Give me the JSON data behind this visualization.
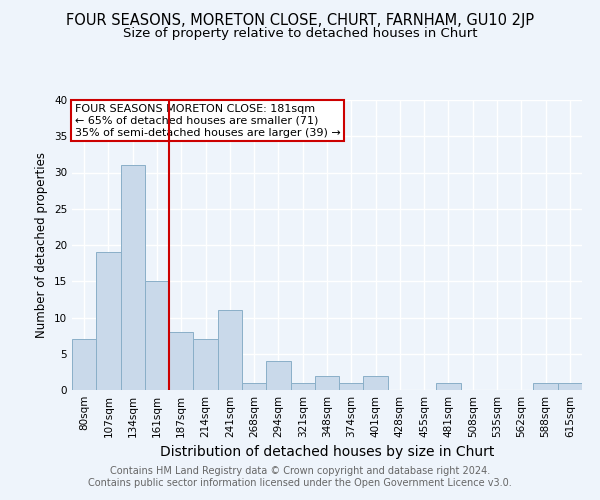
{
  "title": "FOUR SEASONS, MORETON CLOSE, CHURT, FARNHAM, GU10 2JP",
  "subtitle": "Size of property relative to detached houses in Churt",
  "xlabel": "Distribution of detached houses by size in Churt",
  "ylabel": "Number of detached properties",
  "categories": [
    "80sqm",
    "107sqm",
    "134sqm",
    "161sqm",
    "187sqm",
    "214sqm",
    "241sqm",
    "268sqm",
    "294sqm",
    "321sqm",
    "348sqm",
    "374sqm",
    "401sqm",
    "428sqm",
    "455sqm",
    "481sqm",
    "508sqm",
    "535sqm",
    "562sqm",
    "588sqm",
    "615sqm"
  ],
  "values": [
    7,
    19,
    31,
    15,
    8,
    7,
    11,
    1,
    4,
    1,
    2,
    1,
    2,
    0,
    0,
    1,
    0,
    0,
    0,
    1,
    1
  ],
  "bar_color": "#c9d9ea",
  "bar_edge_color": "#8aafc8",
  "vline_index": 4,
  "vline_color": "#cc0000",
  "annotation_title": "FOUR SEASONS MORETON CLOSE: 181sqm",
  "annotation_line1": "← 65% of detached houses are smaller (71)",
  "annotation_line2": "35% of semi-detached houses are larger (39) →",
  "annotation_box_facecolor": "#ffffff",
  "annotation_box_edgecolor": "#cc0000",
  "ylim": [
    0,
    40
  ],
  "yticks": [
    0,
    5,
    10,
    15,
    20,
    25,
    30,
    35,
    40
  ],
  "footer_line1": "Contains HM Land Registry data © Crown copyright and database right 2024.",
  "footer_line2": "Contains public sector information licensed under the Open Government Licence v3.0.",
  "bg_color": "#eef4fb",
  "grid_color": "#ffffff",
  "title_fontsize": 10.5,
  "subtitle_fontsize": 9.5,
  "xlabel_fontsize": 10,
  "ylabel_fontsize": 8.5,
  "tick_fontsize": 7.5,
  "annotation_fontsize": 8,
  "footer_fontsize": 7
}
